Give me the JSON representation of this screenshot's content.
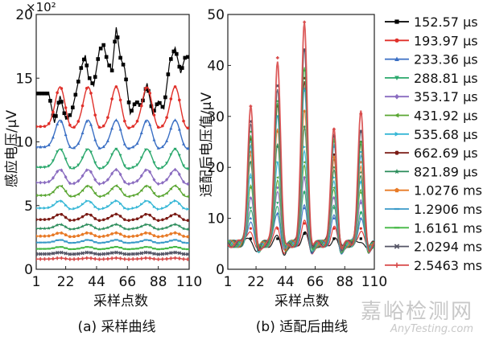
{
  "chart_data": [
    {
      "type": "line",
      "subtitle": "(a) 采样曲线",
      "xlabel": "采样点数",
      "ylabel": "感应电压/μV",
      "exponent_label": "×10²",
      "y_multiplier": 100,
      "xlim": [
        1,
        110
      ],
      "ylim": [
        0,
        20
      ],
      "x_ticks": [
        "1",
        "22",
        "44",
        "66",
        "88",
        "110"
      ],
      "y_ticks": [
        "0",
        "5",
        "10",
        "15",
        "20"
      ],
      "curve_shape": {
        "peak_x": [
          18,
          38,
          58,
          80,
          100
        ],
        "peak_width": 3.5,
        "peak_rise_fraction": [
          0.35,
          0.28,
          0.22,
          0.18,
          0.15,
          0.13,
          0.12,
          0.11,
          0.1,
          0.1,
          0.1,
          0.1,
          0.1,
          0.1
        ],
        "first_series_trace": [
          [
            1,
            13.8
          ],
          [
            10,
            13.8
          ],
          [
            14,
            11.5
          ],
          [
            18,
            13.6
          ],
          [
            22,
            11.8
          ],
          [
            26,
            12.2
          ],
          [
            30,
            14.2
          ],
          [
            33,
            15.8
          ],
          [
            36,
            16.8
          ],
          [
            38,
            15.2
          ],
          [
            42,
            14.4
          ],
          [
            46,
            17.2
          ],
          [
            49,
            17.6
          ],
          [
            52,
            16.2
          ],
          [
            55,
            15.6
          ],
          [
            58,
            19.0
          ],
          [
            61,
            16.6
          ],
          [
            64,
            15.8
          ],
          [
            68,
            12.2
          ],
          [
            72,
            13.2
          ],
          [
            76,
            12.8
          ],
          [
            80,
            14.6
          ],
          [
            84,
            12.2
          ],
          [
            88,
            13.2
          ],
          [
            92,
            12.6
          ],
          [
            96,
            16.2
          ],
          [
            100,
            17.4
          ],
          [
            104,
            15.4
          ],
          [
            107,
            16.6
          ],
          [
            110,
            16.7
          ]
        ]
      },
      "series": [
        {
          "name": "152.57 μs",
          "color": "#000000",
          "marker": "square",
          "baseline": 13.8
        },
        {
          "name": "193.97 μs",
          "color": "#e0302a",
          "marker": "circle",
          "baseline": 11.2
        },
        {
          "name": "233.36 μs",
          "color": "#3a6fc4",
          "marker": "triangle",
          "baseline": 9.6
        },
        {
          "name": "288.81 μs",
          "color": "#2aa86c",
          "marker": "triangle-down",
          "baseline": 8.0
        },
        {
          "name": "353.17 μs",
          "color": "#8a6cc0",
          "marker": "diamond",
          "baseline": 6.8
        },
        {
          "name": "431.92 μs",
          "color": "#5aa632",
          "marker": "triangle-left",
          "baseline": 5.8
        },
        {
          "name": "535.68 μs",
          "color": "#36b7d6",
          "marker": "triangle-right",
          "baseline": 4.8
        },
        {
          "name": "662.69 μs",
          "color": "#7a1a14",
          "marker": "hexagon",
          "baseline": 3.9
        },
        {
          "name": "821.89 μs",
          "color": "#2a8c5a",
          "marker": "star",
          "baseline": 3.2
        },
        {
          "name": "1.0276 ms",
          "color": "#e87a26",
          "marker": "pentagon",
          "baseline": 2.6
        },
        {
          "name": "1.2906 ms",
          "color": "#3a9ac8",
          "marker": "dash",
          "baseline": 2.1
        },
        {
          "name": "1.6161 ms",
          "color": "#44b844",
          "marker": "dash",
          "baseline": 1.6
        },
        {
          "name": "2.0294 ms",
          "color": "#555566",
          "marker": "cross",
          "baseline": 1.2
        },
        {
          "name": "2.5463 ms",
          "color": "#d84a4a",
          "marker": "plus",
          "baseline": 0.8
        }
      ]
    },
    {
      "type": "line",
      "subtitle": "(b) 适配后曲线",
      "xlabel": "采样点数",
      "ylabel": "适配后电压值/μV",
      "xlim": [
        1,
        110
      ],
      "ylim": [
        0,
        50
      ],
      "x_ticks": [
        "1",
        "22",
        "44",
        "66",
        "88",
        "110"
      ],
      "y_ticks": [
        "0",
        "10",
        "20",
        "30",
        "40",
        "50"
      ],
      "curve_shape": {
        "baseline": 5.0,
        "baseline_variation": 1.2,
        "peak_x": [
          18,
          38,
          58,
          80,
          100
        ],
        "peak_width": 2.2,
        "peak_envelope": [
          0.6,
          0.7,
          0.76,
          0.63,
          0.58
        ],
        "series_scale": [
          0.22,
          0.28,
          0.34,
          0.42,
          0.5,
          0.56,
          0.62,
          0.68,
          0.74,
          0.8,
          0.86,
          0.92,
          0.96,
          1.0
        ]
      },
      "series": [
        {
          "name": "152.57 μs",
          "color": "#000000",
          "peak_values": [
            6,
            6,
            7,
            6,
            6
          ]
        },
        {
          "name": "193.97 μs",
          "color": "#e0302a",
          "peak_values": [
            8,
            8,
            9,
            8,
            8
          ]
        },
        {
          "name": "233.36 μs",
          "color": "#3a6fc4",
          "peak_values": [
            10,
            11,
            12,
            10,
            10
          ]
        },
        {
          "name": "288.81 μs",
          "color": "#2aa86c",
          "peak_values": [
            12,
            13,
            15,
            12,
            11
          ]
        },
        {
          "name": "353.17 μs",
          "color": "#8a6cc0",
          "peak_values": [
            14,
            16,
            18,
            14,
            13
          ]
        },
        {
          "name": "431.92 μs",
          "color": "#5aa632",
          "peak_values": [
            16,
            18,
            21,
            16,
            15
          ]
        },
        {
          "name": "535.68 μs",
          "color": "#36b7d6",
          "peak_values": [
            18,
            21,
            24,
            18,
            17
          ]
        },
        {
          "name": "662.69 μs",
          "color": "#7a1a14",
          "peak_values": [
            25.5,
            32,
            37.5,
            22.5,
            25
          ]
        },
        {
          "name": "821.89 μs",
          "color": "#2a8c5a",
          "peak_values": [
            21,
            24,
            28,
            20,
            19
          ]
        },
        {
          "name": "1.0276 ms",
          "color": "#e87a26",
          "peak_values": [
            23,
            27,
            31,
            22,
            21
          ]
        },
        {
          "name": "1.2906 ms",
          "color": "#3a9ac8",
          "peak_values": [
            25,
            30,
            35,
            24,
            23
          ]
        },
        {
          "name": "1.6161 ms",
          "color": "#44b844",
          "peak_values": [
            27,
            33,
            39,
            25,
            25
          ]
        },
        {
          "name": "2.0294 ms",
          "color": "#555566",
          "peak_values": [
            29,
            36,
            43,
            26,
            27
          ]
        },
        {
          "name": "2.5463 ms",
          "color": "#d84a4a",
          "peak_values": [
            32,
            41.5,
            48.5,
            27.5,
            30.5
          ]
        }
      ]
    }
  ],
  "watermark": {
    "cn": "嘉峪检测网",
    "en": "AnyTesting.com"
  }
}
